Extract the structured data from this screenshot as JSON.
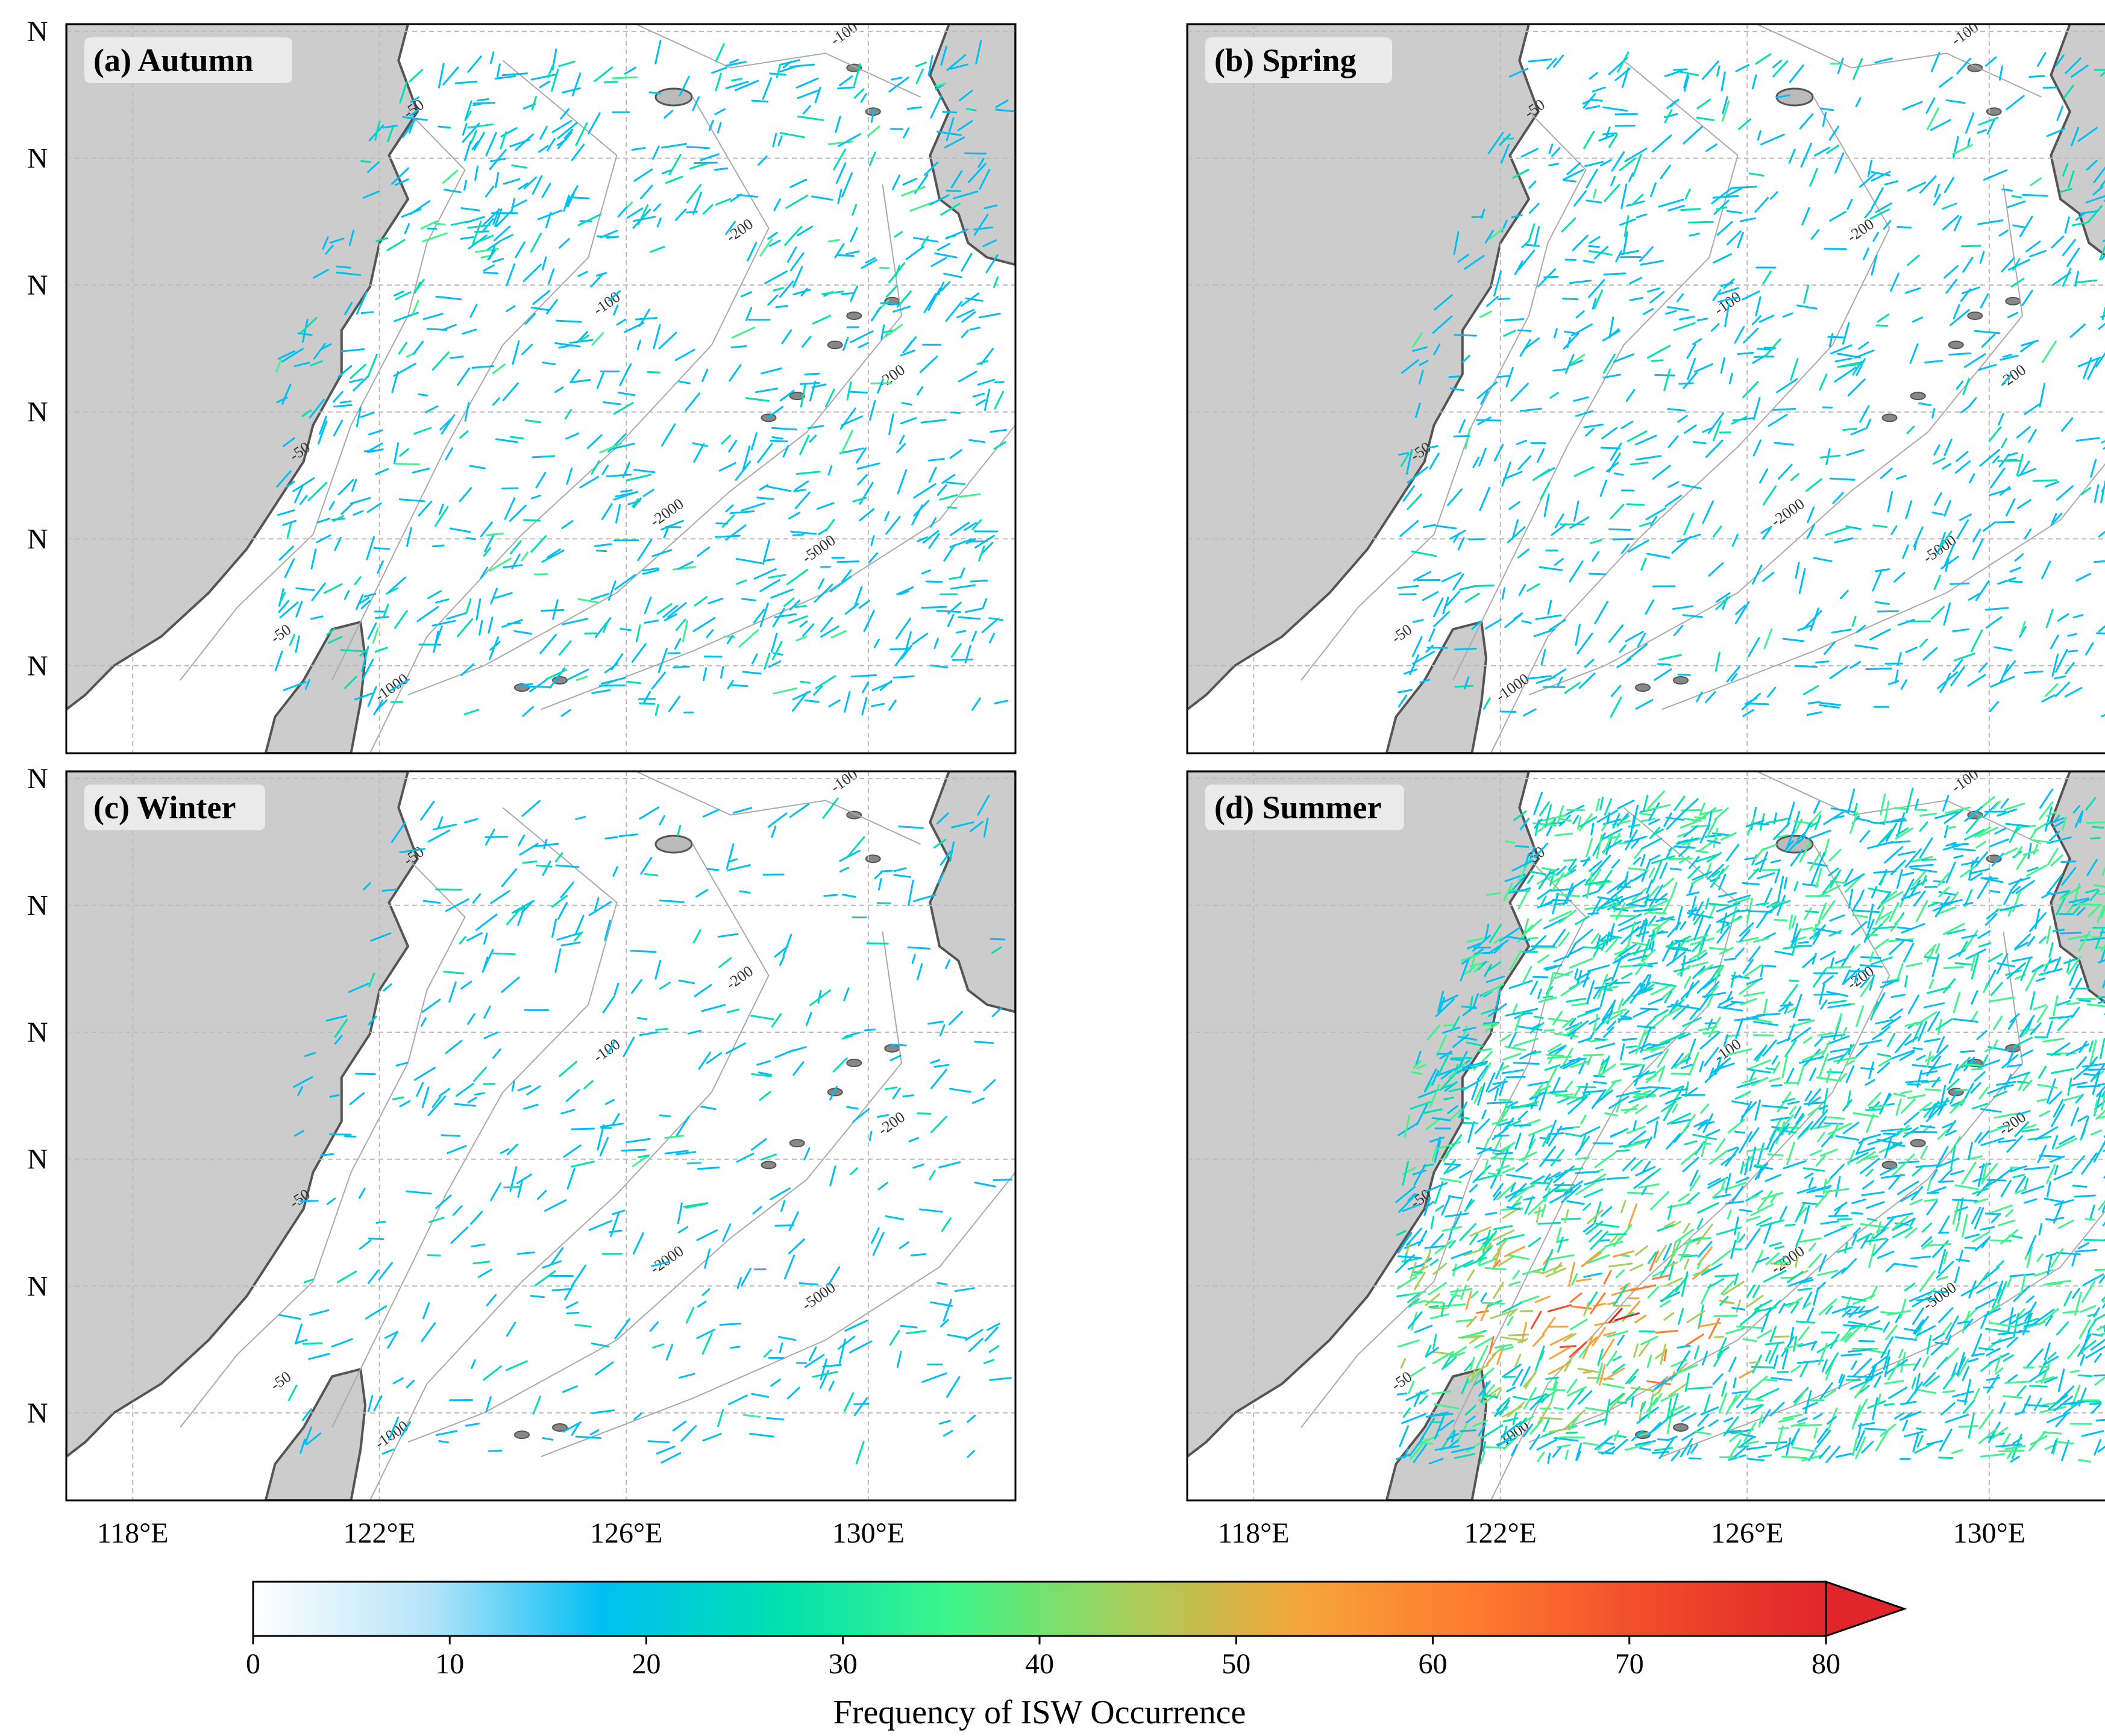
{
  "panels": [
    {
      "id": "a",
      "title": "(a) Autumn",
      "season": "Autumn",
      "density": 1.0,
      "hot": 0.05
    },
    {
      "id": "b",
      "title": "(b) Spring",
      "season": "Spring",
      "density": 0.9,
      "hot": 0.02
    },
    {
      "id": "c",
      "title": "(c) Winter",
      "season": "Winter",
      "density": 0.5,
      "hot": 0.01
    },
    {
      "id": "d",
      "title": "(d) Summer",
      "season": "Summer",
      "density": 3.2,
      "hot": 0.35
    }
  ],
  "axes": {
    "lon_ticks": [
      "118°E",
      "122°E",
      "126°E",
      "130°E"
    ],
    "lat_tick_text": "N",
    "lat_tick_count": 6
  },
  "contour_labels": [
    "-50",
    "-100",
    "-200",
    "-2000",
    "-5000",
    "-1000"
  ],
  "colorbar": {
    "title": "Frequency of ISW Occurrence",
    "min": 0,
    "max": 80,
    "ticks": [
      "0",
      "10",
      "20",
      "30",
      "40",
      "50",
      "60",
      "70",
      "80"
    ],
    "extend": "max",
    "colors": [
      "#ffffff",
      "#b7e4f9",
      "#00bff3",
      "#00e0b0",
      "#3df58a",
      "#a6cf5a",
      "#f5a43a",
      "#ff7a2e",
      "#f04a2a",
      "#e0262a"
    ]
  },
  "colors": {
    "land": "#cccccc",
    "coast": "#555555",
    "contour": "#aaaaaa",
    "grid": "#bbbbbb"
  }
}
